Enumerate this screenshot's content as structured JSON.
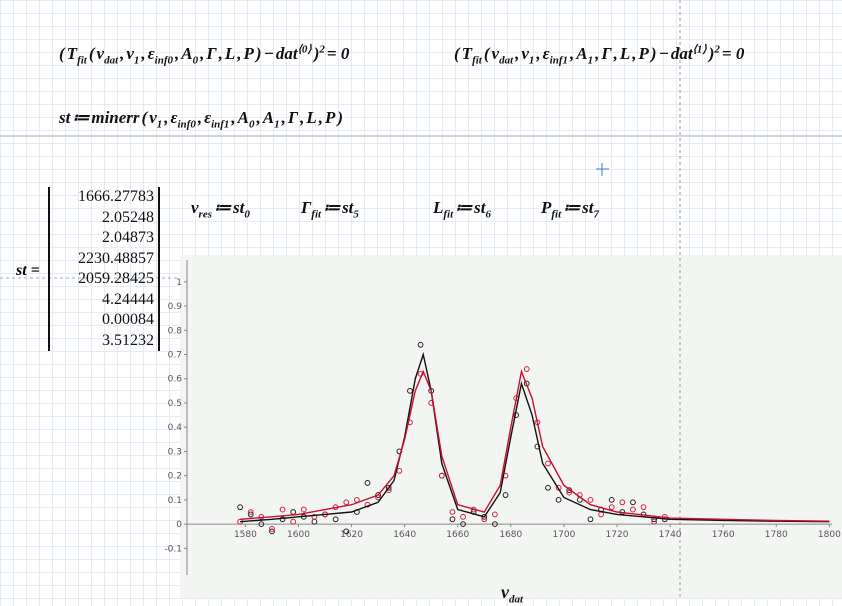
{
  "worksheet": {
    "eq_a": [
      "(",
      {
        "base": "T",
        "sub": "fit"
      },
      "(",
      {
        "base": "ν",
        "sub": "dat"
      },
      ",",
      {
        "base": "ν",
        "sub": "1"
      },
      ",",
      {
        "base": "ε",
        "sub": "inf0"
      },
      ",",
      {
        "base": "A",
        "sub": "0"
      },
      ",",
      "Γ",
      ",",
      "L",
      ",",
      "P",
      ")",
      "−",
      {
        "base": "dat",
        "sup": "⟨0⟩"
      },
      {
        "base": ")",
        "sup": "2"
      },
      "= 0"
    ],
    "eq_b": [
      "(",
      {
        "base": "T",
        "sub": "fit"
      },
      "(",
      {
        "base": "ν",
        "sub": "dat"
      },
      ",",
      {
        "base": "ν",
        "sub": "1"
      },
      ",",
      {
        "base": "ε",
        "sub": "inf1"
      },
      ",",
      {
        "base": "A",
        "sub": "1"
      },
      ",",
      "Γ",
      ",",
      "L",
      ",",
      "P",
      ")",
      "−",
      {
        "base": "dat",
        "sup": "⟨1⟩"
      },
      {
        "base": ")",
        "sup": "2"
      },
      "= 0"
    ],
    "eq_st": [
      "st",
      "≔",
      "minerr",
      "(",
      {
        "base": "ν",
        "sub": "1"
      },
      ",",
      {
        "base": "ε",
        "sub": "inf0"
      },
      ",",
      {
        "base": "ε",
        "sub": "inf1"
      },
      ",",
      {
        "base": "A",
        "sub": "0"
      },
      ",",
      {
        "base": "A",
        "sub": "1"
      },
      ",",
      "Γ",
      ",",
      "L",
      ",",
      "P",
      ")"
    ],
    "defs": [
      [
        {
          "base": "ν",
          "sub": "res"
        },
        "≔",
        {
          "base": "st",
          "sub": "0"
        }
      ],
      [
        {
          "base": "Γ",
          "sub": "fit"
        },
        "≔",
        {
          "base": "st",
          "sub": "5"
        }
      ],
      [
        {
          "base": "L",
          "sub": "fit"
        },
        "≔",
        {
          "base": "st",
          "sub": "6"
        }
      ],
      [
        {
          "base": "P",
          "sub": "fit"
        },
        "≔",
        {
          "base": "st",
          "sub": "7"
        }
      ]
    ],
    "matrix_label": "st =",
    "matrix": [
      1666.27783,
      2.05248,
      2.04873,
      2230.48857,
      2059.28425,
      4.24444,
      0.00084,
      3.51232
    ]
  },
  "chart_data": {
    "type": "scatter",
    "x_label": {
      "base": "ν",
      "sub": "dat"
    },
    "xlim": [
      1558,
      1801
    ],
    "ylim": [
      -0.21,
      1.09
    ],
    "xticks": [
      1580,
      1600,
      1620,
      1640,
      1660,
      1680,
      1700,
      1720,
      1740,
      1760,
      1780,
      1800
    ],
    "yticks": [
      -0.1,
      0,
      0.1,
      0.2,
      0.3,
      0.4,
      0.5,
      0.6,
      0.7,
      0.8,
      0.9,
      1
    ],
    "series": [
      {
        "type": "scatter",
        "color": "#222222",
        "x": [
          1578,
          1582,
          1586,
          1590,
          1594,
          1598,
          1602,
          1606,
          1610,
          1614,
          1618,
          1622,
          1626,
          1630,
          1634,
          1638,
          1642,
          1646,
          1650,
          1654,
          1658,
          1662,
          1666,
          1670,
          1674,
          1678,
          1682,
          1686,
          1690,
          1694,
          1698,
          1702,
          1706,
          1710,
          1714,
          1718,
          1722,
          1726,
          1730,
          1734,
          1738
        ],
        "values": [
          0.07,
          0.04,
          0.0,
          -0.03,
          0.02,
          0.05,
          0.03,
          0.01,
          0.04,
          0.02,
          -0.03,
          0.05,
          0.17,
          0.12,
          0.15,
          0.3,
          0.55,
          0.74,
          0.55,
          0.2,
          0.02,
          0.0,
          0.05,
          0.03,
          0.0,
          0.12,
          0.45,
          0.58,
          0.32,
          0.15,
          0.1,
          0.14,
          0.1,
          0.02,
          0.06,
          0.1,
          0.05,
          0.09,
          0.04,
          0.02,
          0.02
        ]
      },
      {
        "type": "scatter",
        "color": "#d4213d",
        "x": [
          1578,
          1582,
          1586,
          1590,
          1594,
          1598,
          1602,
          1606,
          1610,
          1614,
          1618,
          1622,
          1626,
          1630,
          1634,
          1638,
          1642,
          1646,
          1650,
          1654,
          1658,
          1662,
          1666,
          1670,
          1674,
          1678,
          1682,
          1686,
          1690,
          1694,
          1698,
          1702,
          1706,
          1710,
          1714,
          1718,
          1722,
          1726,
          1730,
          1734,
          1738
        ],
        "values": [
          0.01,
          0.05,
          0.03,
          -0.02,
          0.06,
          0.01,
          0.06,
          0.03,
          0.04,
          0.07,
          0.09,
          0.1,
          0.08,
          0.11,
          0.14,
          0.22,
          0.42,
          0.62,
          0.5,
          0.2,
          0.05,
          0.03,
          0.06,
          0.02,
          0.04,
          0.2,
          0.52,
          0.64,
          0.42,
          0.25,
          0.15,
          0.13,
          0.12,
          0.1,
          0.04,
          0.07,
          0.09,
          0.06,
          0.07,
          0.01,
          0.03
        ]
      },
      {
        "type": "line",
        "color": "#111111",
        "x": [
          1578,
          1590,
          1600,
          1610,
          1620,
          1630,
          1636,
          1640,
          1644,
          1647,
          1650,
          1654,
          1660,
          1670,
          1676,
          1680,
          1684,
          1688,
          1692,
          1700,
          1710,
          1720,
          1740,
          1760,
          1780,
          1800
        ],
        "values": [
          0.01,
          0.02,
          0.03,
          0.04,
          0.05,
          0.09,
          0.18,
          0.36,
          0.6,
          0.7,
          0.55,
          0.25,
          0.06,
          0.03,
          0.13,
          0.36,
          0.58,
          0.45,
          0.25,
          0.11,
          0.06,
          0.04,
          0.02,
          0.015,
          0.012,
          0.01
        ]
      },
      {
        "type": "line",
        "color": "#c8102e",
        "x": [
          1578,
          1590,
          1600,
          1610,
          1620,
          1630,
          1636,
          1640,
          1644,
          1647,
          1650,
          1654,
          1660,
          1670,
          1676,
          1680,
          1684,
          1688,
          1692,
          1700,
          1710,
          1720,
          1740,
          1760,
          1780,
          1800
        ],
        "values": [
          0.02,
          0.03,
          0.04,
          0.06,
          0.08,
          0.12,
          0.2,
          0.35,
          0.55,
          0.63,
          0.55,
          0.28,
          0.08,
          0.05,
          0.16,
          0.4,
          0.63,
          0.52,
          0.32,
          0.16,
          0.08,
          0.05,
          0.025,
          0.02,
          0.015,
          0.012
        ]
      }
    ]
  }
}
